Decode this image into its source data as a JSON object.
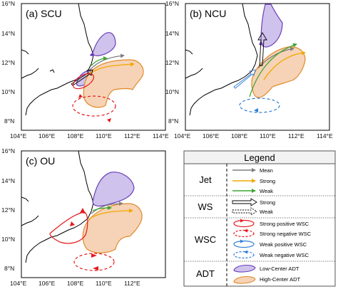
{
  "panels": [
    {
      "title": "(a) SCU",
      "lat_ticks": [
        "16°N",
        "14°N",
        "12°N",
        "10°N",
        "8°N"
      ],
      "lon_ticks": [
        "104°E",
        "106°E",
        "108°E",
        "110°E",
        "112°E",
        "114°E"
      ]
    },
    {
      "title": "(b) NCU",
      "lat_ticks": [
        "16°N",
        "14°N",
        "12°N",
        "10°N",
        "8°N"
      ],
      "lon_ticks": [
        "104°E",
        "106°E",
        "108°E",
        "110°E",
        "112°E",
        "114°E"
      ]
    },
    {
      "title": "(c) OU",
      "lat_ticks": [
        "16°N",
        "14°N",
        "12°N",
        "10°N",
        "8°N"
      ],
      "lon_ticks": [
        "104°E",
        "106°E",
        "108°E",
        "110°E",
        "112°E"
      ]
    }
  ],
  "legend": {
    "title": "Legend",
    "groups": [
      {
        "category": "Jet",
        "items": [
          "Mean",
          "Strong",
          "Weak"
        ]
      },
      {
        "category": "WS",
        "items": [
          "Strong",
          "Weak"
        ]
      },
      {
        "category": "WSC",
        "items": [
          "Strong positive WSC",
          "Strong negative WSC",
          "Weak positive WSC",
          "Weak negative WSC"
        ]
      },
      {
        "category": "ADT",
        "items": [
          "Low-Center ADT",
          "High-Center ADT"
        ]
      }
    ]
  },
  "colors": {
    "jet_mean": "#7f7f7f",
    "jet_strong": "#f0a800",
    "jet_weak": "#3fa535",
    "wsc_strong": "#e41a1c",
    "wsc_weak": "#2f7fd6",
    "low_adt_fill": "#cfc2ec",
    "low_adt_edge": "#6a3fb8",
    "high_adt_fill": "#f6d3b6",
    "high_adt_edge": "#e08a2a"
  }
}
